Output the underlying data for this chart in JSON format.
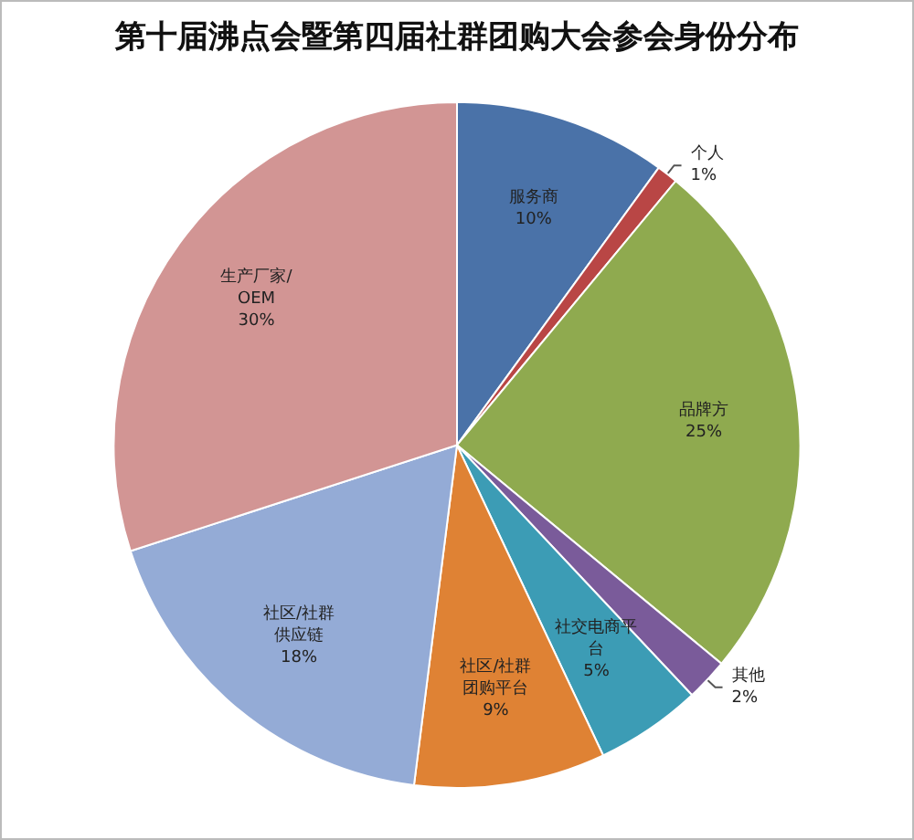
{
  "chart_data": {
    "type": "pie",
    "title": "第十届沸点会暨第四届社群团购大会参会身份分布",
    "categories": [
      "服务商",
      "个人",
      "品牌方",
      "其他",
      "社交电商平台",
      "社区/社群团购平台",
      "社区/社群供应链",
      "生产厂家/OEM"
    ],
    "values": [
      10,
      1,
      25,
      2,
      5,
      9,
      18,
      30
    ],
    "colors": [
      "#4a72a8",
      "#b94645",
      "#8faa4f",
      "#7a5b9a",
      "#3c9cb5",
      "#df8234",
      "#94abd6",
      "#d29594"
    ],
    "value_labels": [
      "10%",
      "1%",
      "25%",
      "2%",
      "5%",
      "9%",
      "18%",
      "30%"
    ],
    "legend": false
  }
}
